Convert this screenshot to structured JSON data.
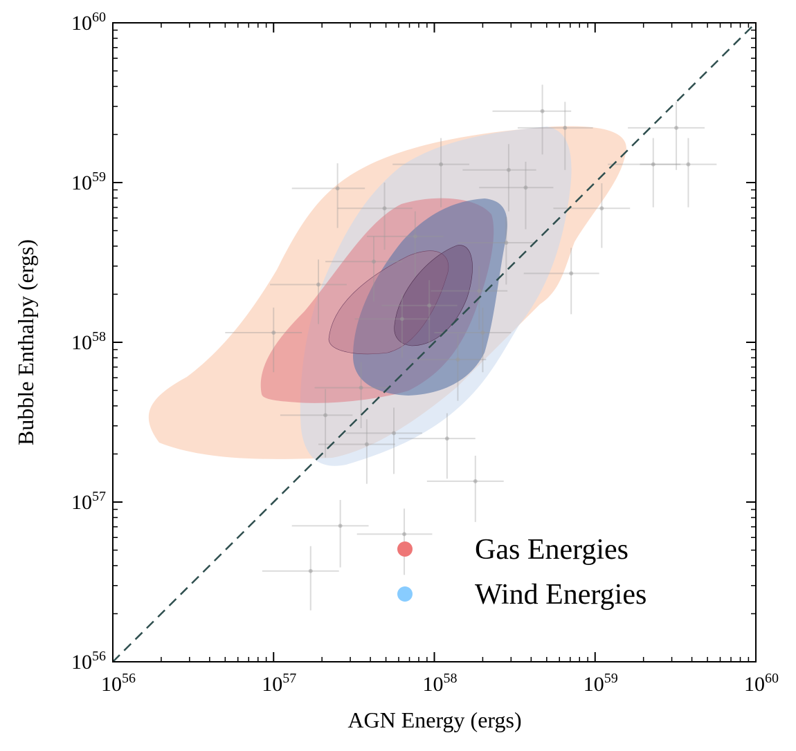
{
  "chart_data": {
    "type": "scatter",
    "xlabel": "AGN Energy (ergs)",
    "ylabel": "Bubble Enthalpy (ergs)",
    "log_x": true,
    "log_y": true,
    "xlim": [
      1e+56,
      1e+60
    ],
    "ylim": [
      1e+56,
      1e+60
    ],
    "xticks": [
      {
        "value": 1e+56,
        "label": "10",
        "exponent": "56"
      },
      {
        "value": 1e+57,
        "label": "10",
        "exponent": "57"
      },
      {
        "value": 1e+58,
        "label": "10",
        "exponent": "58"
      },
      {
        "value": 1e+59,
        "label": "10",
        "exponent": "59"
      },
      {
        "value": 1e+60,
        "label": "10",
        "exponent": "60"
      }
    ],
    "yticks": [
      {
        "value": 1e+56,
        "label": "10",
        "exponent": "56"
      },
      {
        "value": 1e+57,
        "label": "10",
        "exponent": "57"
      },
      {
        "value": 1e+58,
        "label": "10",
        "exponent": "58"
      },
      {
        "value": 1e+59,
        "label": "10",
        "exponent": "59"
      },
      {
        "value": 1e+60,
        "label": "10",
        "exponent": "60"
      }
    ],
    "contours": [
      {
        "name": "Gas Energies",
        "color": "#ee7777"
      },
      {
        "name": "Wind Energies",
        "color": "#88ccff"
      }
    ],
    "points": {
      "color": "#999999",
      "x": [
        2.5e+57,
        4.7e+58,
        6.5e+58,
        3.2e+59,
        2.3e+59,
        3.8e+59,
        1.1e+59,
        7.1e+58,
        1.8e+58,
        2.6e+57,
        6.5e+57,
        1.7e+57,
        1.2e+58,
        5.6e+57,
        3.8e+57,
        1.1e+58,
        2.9e+58,
        3.7e+58,
        4.9e+57,
        7.6e+57,
        1.9e+57,
        1e+57,
        3.5e+57,
        2.1e+57,
        1.4e+58,
        2e+58,
        9.3e+57,
        4.2e+57,
        6.3e+57,
        2.8e+58,
        1.9e+58
      ],
      "y": [
        9.2e+58,
        2.8e+59,
        2.2e+59,
        2.2e+59,
        1.3e+59,
        1.3e+59,
        6.9e+58,
        2.7e+58,
        1.35e+57,
        7.1e+56,
        6.3e+56,
        3.7e+56,
        2.5e+57,
        2.7e+57,
        2.3e+57,
        1.3e+59,
        1.2e+59,
        9.3e+58,
        6.9e+58,
        4.6e+58,
        2.3e+58,
        1.15e+58,
        5.2e+57,
        3.5e+57,
        7.8e+57,
        1.15e+58,
        1.7e+58,
        3.2e+58,
        1.4e+58,
        4.2e+58,
        2.1e+58
      ],
      "xerr": [
        1.2e+57,
        2.4e+58,
        3.2e+58,
        1.6e+59,
        1.1e+59,
        1.9e+59,
        5.5e+58,
        3.5e+58,
        9e+57,
        1.3e+57,
        3.2e+57,
        8.5e+56,
        6e+57,
        2.8e+57,
        1.9e+57,
        5.5e+57,
        1.4e+58,
        1.8e+58,
        2.4e+57,
        3.8e+57,
        9.5e+56,
        5e+56,
        1.7e+57,
        1e+57,
        7e+57,
        1e+58,
        4.6e+57,
        2.1e+57,
        3.1e+57,
        1.4e+58,
        9.5e+57
      ],
      "yerr": [
        4e+58,
        1.3e+59,
        1e+59,
        1e+59,
        6e+58,
        6e+58,
        3e+58,
        1.2e+58,
        6e+56,
        3.2e+56,
        2.8e+56,
        1.6e+56,
        1.1e+57,
        1.2e+57,
        1e+57,
        6e+58,
        5.4e+58,
        4.2e+58,
        3.1e+58,
        2e+58,
        1e+58,
        5e+57,
        2.3e+57,
        1.6e+57,
        3.5e+57,
        5e+57,
        7.5e+57,
        1.4e+58,
        6e+57,
        1.9e+58,
        9e+57
      ]
    }
  }
}
